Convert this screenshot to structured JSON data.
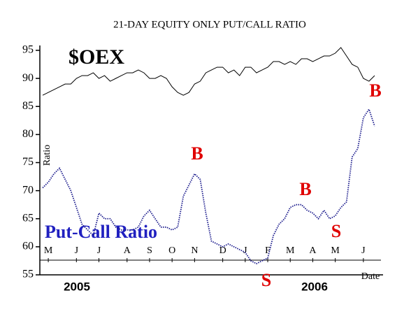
{
  "chart_data": {
    "type": "line",
    "title": "21-DAY EQUITY ONLY PUT/CALL RATIO",
    "y_label": "Ratio",
    "x_label": "Date",
    "years": [
      "2005",
      "2006"
    ],
    "annotations": [
      "B",
      "B",
      "B",
      "S",
      "S"
    ],
    "categories": [
      null,
      "M",
      null,
      null,
      null,
      null,
      "J",
      null,
      null,
      null,
      "J",
      null,
      null,
      null,
      null,
      "A",
      null,
      null,
      null,
      "S",
      null,
      null,
      null,
      "O",
      null,
      null,
      null,
      "N",
      null,
      null,
      null,
      null,
      "D",
      null,
      null,
      null,
      "J",
      null,
      null,
      null,
      "F",
      null,
      null,
      null,
      "M",
      null,
      null,
      null,
      "A",
      null,
      null,
      null,
      "M",
      null,
      null,
      null,
      null,
      "J",
      null,
      null
    ],
    "series": [
      {
        "name": "$OEX",
        "color": "#000000",
        "values": [
          87,
          87.5,
          88,
          88.5,
          89,
          89,
          90,
          90.5,
          90.5,
          91,
          90,
          90.5,
          89.5,
          90,
          90.5,
          91,
          91,
          91.5,
          91,
          90,
          90,
          90.5,
          90,
          88.5,
          87.5,
          87,
          87.5,
          89,
          89.5,
          91,
          91.5,
          92,
          92,
          91,
          91.5,
          90.5,
          92,
          92,
          91,
          91.5,
          92,
          93,
          93,
          92.5,
          93,
          92.5,
          93.5,
          93.5,
          93,
          93.5,
          94,
          94,
          94.5,
          95.5,
          94,
          92.5,
          92,
          90,
          89.5,
          90.5
        ]
      },
      {
        "name": "Put-Call Ratio",
        "color": "#1a1a8c",
        "values": [
          70.5,
          71.5,
          73,
          74,
          72,
          70,
          67,
          64,
          63,
          62,
          66,
          65,
          65,
          63.5,
          63,
          63,
          63,
          63.5,
          65.5,
          66.5,
          65,
          63.5,
          63.5,
          63,
          63.5,
          69,
          71,
          73,
          72,
          66,
          61,
          60.5,
          60,
          60.5,
          60,
          59.5,
          59,
          57.5,
          57,
          57.5,
          58,
          62,
          64,
          65,
          67,
          67.5,
          67.5,
          66.5,
          66,
          65,
          66.5,
          65,
          65.5,
          67,
          68,
          76,
          77.5,
          83,
          84.5,
          81.5
        ]
      }
    ],
    "ylim": [
      55,
      95
    ],
    "yticks": [
      55,
      60,
      65,
      70,
      75,
      80,
      85,
      90,
      95
    ]
  }
}
